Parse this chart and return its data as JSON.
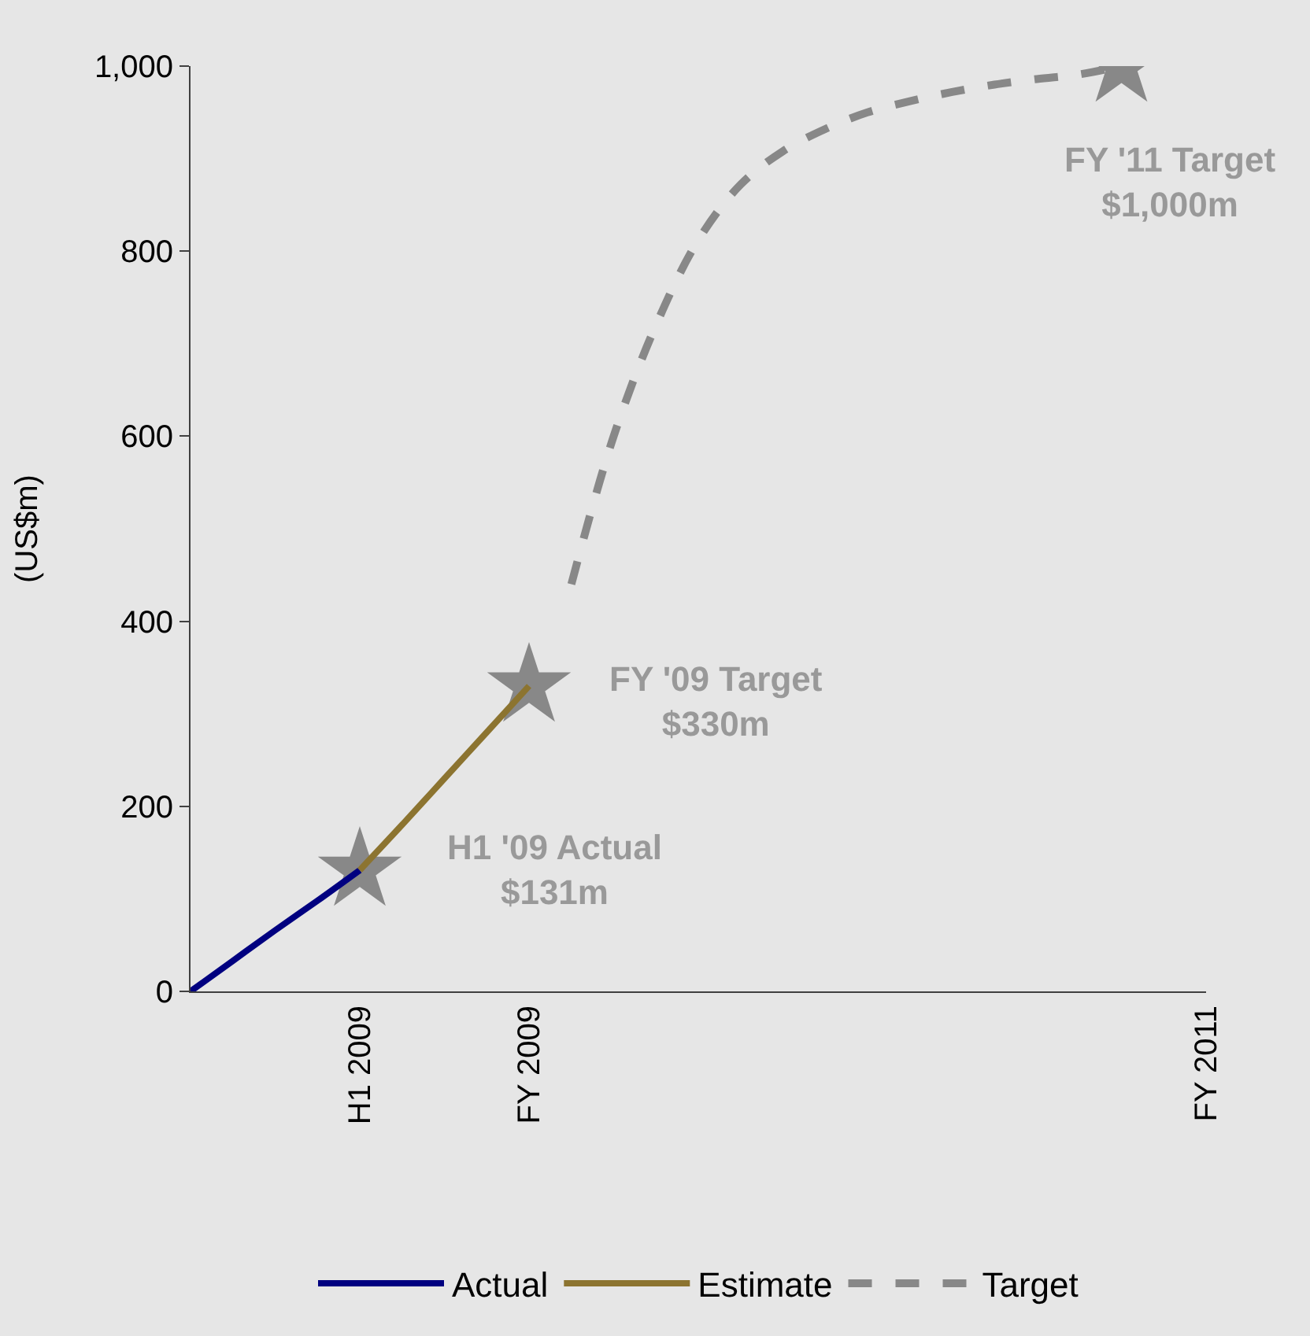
{
  "chart_data": {
    "type": "line",
    "ylabel": "(US$m)",
    "categories": [
      null,
      null,
      null,
      null,
      "H1 2009",
      null,
      null,
      null,
      "FY 2009",
      null,
      null,
      null,
      null,
      null,
      null,
      null,
      null,
      null,
      null,
      null,
      null,
      null,
      null,
      null,
      "FY 2011"
    ],
    "ylim": [
      0,
      1000
    ],
    "yticks": [
      {
        "value": 0,
        "label": "0"
      },
      {
        "value": 200,
        "label": "200"
      },
      {
        "value": 400,
        "label": "400"
      },
      {
        "value": 600,
        "label": "600"
      },
      {
        "value": 800,
        "label": "800"
      },
      {
        "value": 1000,
        "label": "1,000"
      }
    ],
    "grid": false,
    "legend": "bottom",
    "series": [
      {
        "type": "scatter",
        "color": "#888888",
        "marker": "star",
        "values": [
          null,
          null,
          null,
          null,
          131,
          null,
          null,
          null,
          330,
          null,
          null,
          null,
          null,
          null,
          null,
          null,
          null,
          null,
          null,
          null,
          null,
          null,
          1000,
          null,
          null
        ]
      },
      {
        "name": "Actual",
        "color": "#000080",
        "line_style": "solid",
        "marker": "none",
        "values": [
          0,
          33,
          66,
          98,
          131,
          null,
          null,
          null,
          null,
          null,
          null,
          null,
          null,
          null,
          null,
          null,
          null,
          null,
          null,
          null,
          null,
          null,
          null,
          null,
          null
        ]
      },
      {
        "name": "Estimate",
        "color": "#8c7430",
        "line_style": "solid",
        "marker": "none",
        "values": [
          null,
          null,
          null,
          null,
          131,
          180,
          230,
          280,
          330,
          null,
          null,
          null,
          null,
          null,
          null,
          null,
          null,
          null,
          null,
          null,
          null,
          null,
          null,
          null,
          null
        ]
      },
      {
        "name": "Target",
        "color": "#888888",
        "line_style": "dashed",
        "marker": "none",
        "values": [
          null,
          null,
          null,
          null,
          null,
          null,
          null,
          null,
          null,
          440,
          600,
          720,
          812,
          872,
          908,
          932,
          950,
          962,
          972,
          980,
          986,
          991,
          1000,
          null,
          null
        ]
      }
    ],
    "annotations": [
      "H1 '09 Actual\n$131m",
      "FY '09 Target\n$330m",
      "FY '11 Target\n$1,000m"
    ]
  }
}
